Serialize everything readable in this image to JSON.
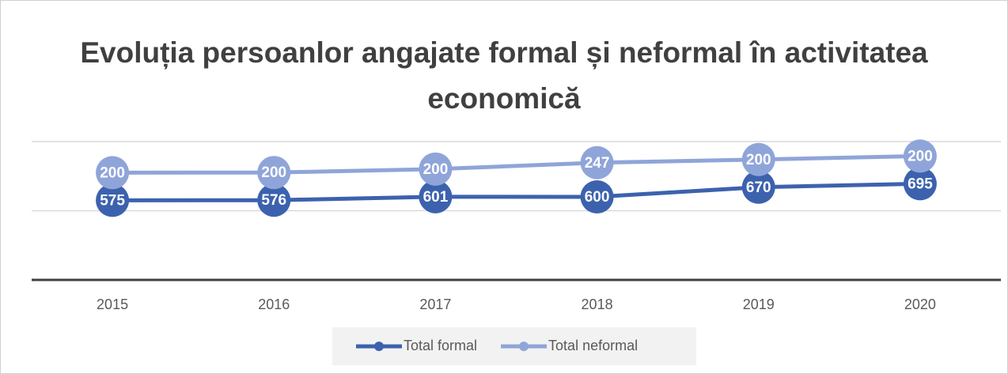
{
  "chart_data": {
    "type": "line",
    "stacked": true,
    "title": "Evoluția persoanlor angajate formal și neformal în activitatea economică",
    "categories": [
      "2015",
      "2016",
      "2017",
      "2018",
      "2019",
      "2020"
    ],
    "series": [
      {
        "name": "Total formal",
        "color": "#3c62ae",
        "values": [
          575,
          576,
          601,
          600,
          670,
          695
        ]
      },
      {
        "name": "Total neformal",
        "color": "#8fa5d9",
        "values": [
          200,
          200,
          200,
          247,
          200,
          200
        ]
      }
    ],
    "ylim": [
      0,
      1000
    ],
    "yticks": [
      0,
      500,
      1000
    ],
    "grid": true,
    "legend": "bottom"
  }
}
